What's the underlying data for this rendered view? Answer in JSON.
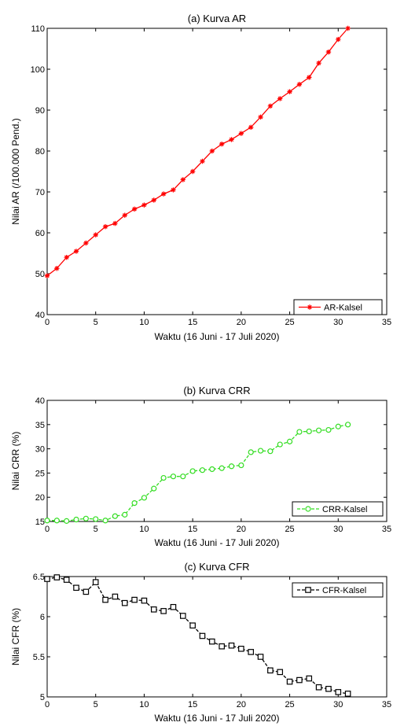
{
  "chart_data": [
    {
      "type": "line",
      "title": "(a) Kurva AR",
      "xlabel": "Waktu (16 Juni - 17 Juli 2020)",
      "ylabel": "Nilai AR (/100.000 Pend.)",
      "xlim": [
        0,
        35
      ],
      "ylim": [
        40,
        110
      ],
      "xticks": [
        0,
        5,
        10,
        15,
        20,
        25,
        30,
        35
      ],
      "yticks": [
        40,
        50,
        60,
        70,
        80,
        90,
        100,
        110
      ],
      "grid": false,
      "legend_position": "bottom-right",
      "series": [
        {
          "name": "AR-Kalsel",
          "color": "#ff0000",
          "marker": "star",
          "line_style": "solid",
          "x": [
            0,
            1,
            2,
            3,
            4,
            5,
            6,
            7,
            8,
            9,
            10,
            11,
            12,
            13,
            14,
            15,
            16,
            17,
            18,
            19,
            20,
            21,
            22,
            23,
            24,
            25,
            26,
            27,
            28,
            29,
            30,
            31
          ],
          "values": [
            49.5,
            51.3,
            54,
            55.5,
            57.5,
            59.5,
            61.5,
            62.3,
            64.3,
            65.8,
            66.8,
            68,
            69.5,
            70.5,
            73,
            75,
            77.5,
            80,
            81.7,
            82.8,
            84.3,
            85.8,
            88.3,
            91,
            92.8,
            94.5,
            96.3,
            98,
            101.5,
            104.2,
            107.3,
            110
          ]
        }
      ]
    },
    {
      "type": "line",
      "title": "(b) Kurva CRR",
      "xlabel": "Waktu (16 Juni - 17 Juli 2020)",
      "ylabel": "Nilai CRR (%)",
      "xlim": [
        0,
        35
      ],
      "ylim": [
        15,
        40
      ],
      "xticks": [
        0,
        5,
        10,
        15,
        20,
        25,
        30,
        35
      ],
      "yticks": [
        15,
        20,
        25,
        30,
        35,
        40
      ],
      "grid": false,
      "legend_position": "bottom-right",
      "series": [
        {
          "name": "CRR-Kalsel",
          "color": "#33dd22",
          "marker": "circle",
          "line_style": "dashed",
          "x": [
            0,
            1,
            2,
            3,
            4,
            5,
            6,
            7,
            8,
            9,
            10,
            11,
            12,
            13,
            14,
            15,
            16,
            17,
            18,
            19,
            20,
            21,
            22,
            23,
            24,
            25,
            26,
            27,
            28,
            29,
            30,
            31
          ],
          "values": [
            15.2,
            15.2,
            15.1,
            15.4,
            15.6,
            15.5,
            15.2,
            16.1,
            16.4,
            18.8,
            19.9,
            21.8,
            24,
            24.3,
            24.3,
            25.4,
            25.6,
            25.8,
            26,
            26.4,
            26.6,
            29.3,
            29.6,
            29.5,
            30.9,
            31.5,
            33.5,
            33.6,
            33.8,
            33.9,
            34.6,
            35
          ]
        }
      ]
    },
    {
      "type": "line",
      "title": "(c) Kurva CFR",
      "xlabel": "Waktu (16 Juni - 17 Juli 2020)",
      "ylabel": "Nilai CFR (%)",
      "xlim": [
        0,
        35
      ],
      "ylim": [
        5,
        6.5
      ],
      "xticks": [
        0,
        5,
        10,
        15,
        20,
        25,
        30,
        35
      ],
      "yticks": [
        5,
        5.5,
        6,
        6.5
      ],
      "grid": false,
      "legend_position": "top-right",
      "series": [
        {
          "name": "CFR-Kalsel",
          "color": "#000000",
          "marker": "square",
          "line_style": "dashed",
          "x": [
            0,
            1,
            2,
            3,
            4,
            5,
            6,
            7,
            8,
            9,
            10,
            11,
            12,
            13,
            14,
            15,
            16,
            17,
            18,
            19,
            20,
            21,
            22,
            23,
            24,
            25,
            26,
            27,
            28,
            29,
            30,
            31
          ],
          "values": [
            6.47,
            6.49,
            6.46,
            6.36,
            6.31,
            6.43,
            6.21,
            6.25,
            6.17,
            6.21,
            6.2,
            6.09,
            6.07,
            6.12,
            6.01,
            5.89,
            5.76,
            5.69,
            5.63,
            5.64,
            5.6,
            5.56,
            5.5,
            5.33,
            5.31,
            5.19,
            5.21,
            5.23,
            5.12,
            5.1,
            5.06,
            5.04
          ]
        }
      ]
    }
  ]
}
